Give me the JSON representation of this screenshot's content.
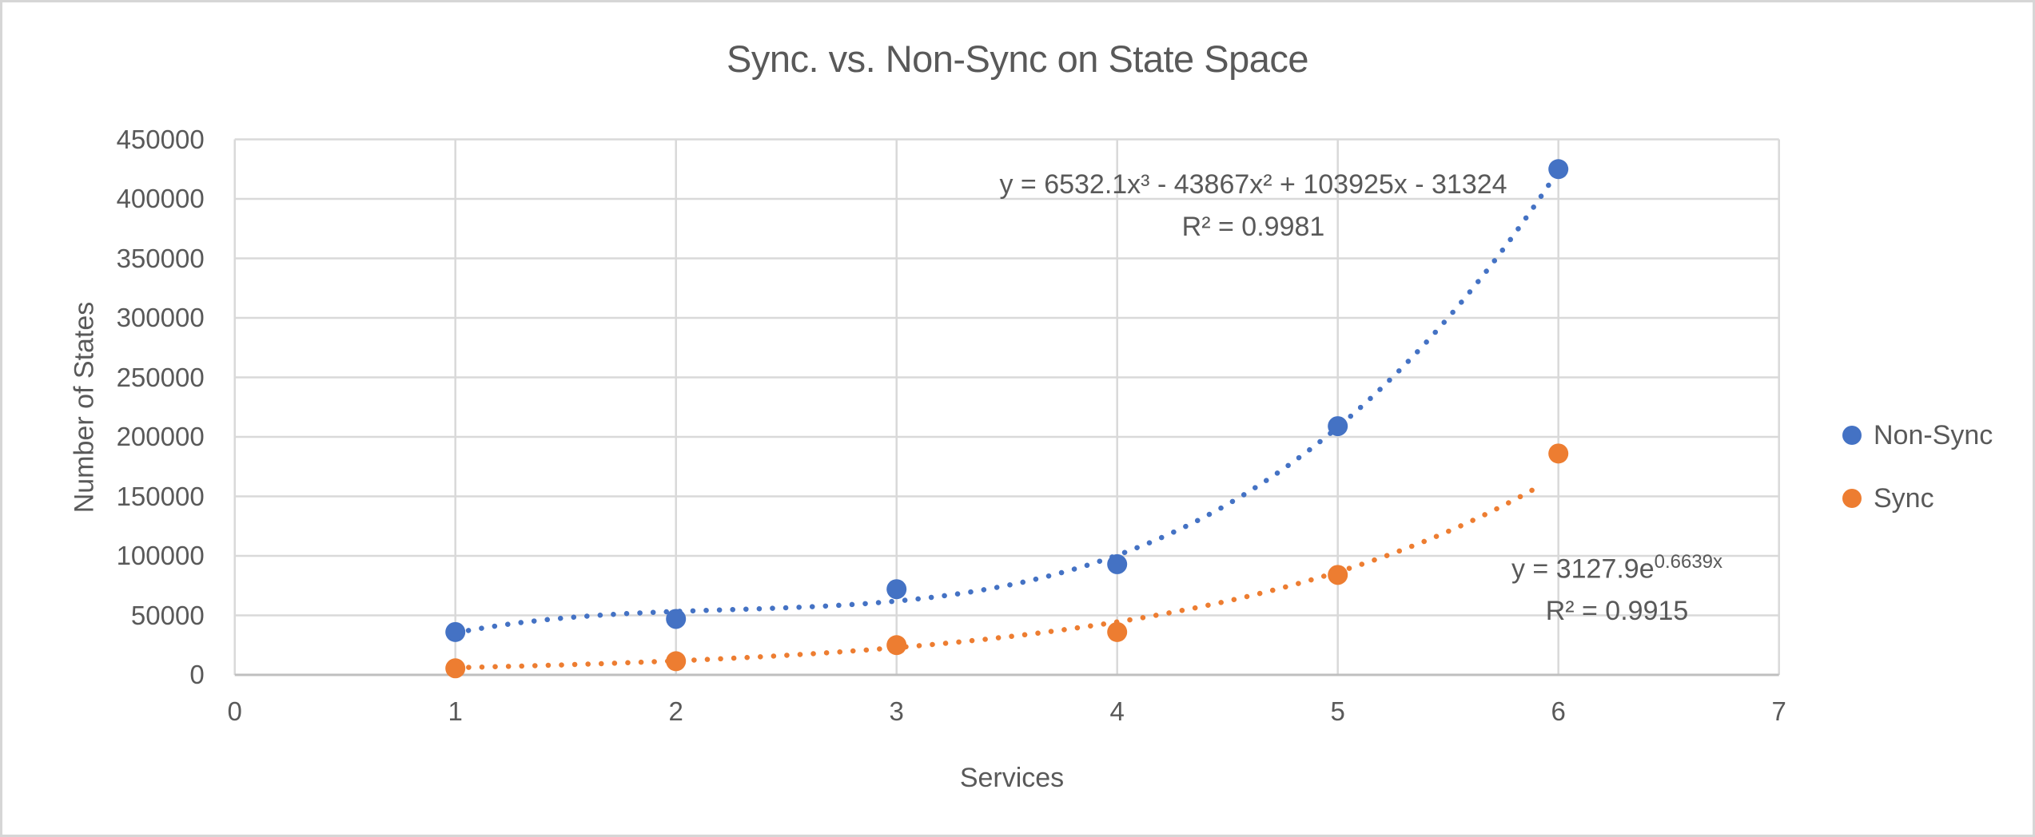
{
  "chart_data": {
    "type": "scatter",
    "title": "Sync. vs. Non-Sync on State Space",
    "xlabel": "Services",
    "ylabel": "Number of States",
    "xlim": [
      0,
      7
    ],
    "ylim": [
      0,
      450000
    ],
    "x_ticks": [
      0,
      1,
      2,
      3,
      4,
      5,
      6,
      7
    ],
    "x_tick_labels": [
      "0",
      "1",
      "2",
      "3",
      "4",
      "5",
      "6",
      "7"
    ],
    "y_ticks": [
      0,
      50000,
      100000,
      150000,
      200000,
      250000,
      300000,
      350000,
      400000,
      450000
    ],
    "y_tick_labels": [
      "0",
      "50000",
      "100000",
      "150000",
      "200000",
      "250000",
      "300000",
      "350000",
      "400000",
      "450000"
    ],
    "grid": true,
    "legend_position": "right",
    "x": [
      1,
      2,
      3,
      4,
      5,
      6
    ],
    "series": [
      {
        "name": "Non-Sync",
        "color": "#4472C4",
        "values": [
          36000,
          47000,
          72000,
          93000,
          209000,
          425000
        ],
        "trendline": {
          "type": "polynomial3",
          "style": "dotted",
          "coefficients": [
            6532.1,
            -43867,
            103925,
            -31324
          ],
          "x_range": [
            1,
            6
          ],
          "equation_label": "y = 6532.1x³ - 43867x² + 103925x - 31324",
          "r2_label": "R² = 0.9981"
        }
      },
      {
        "name": "Sync",
        "color": "#ED7D31",
        "values": [
          5500,
          11500,
          25000,
          36000,
          84000,
          186000
        ],
        "trendline": {
          "type": "exponential",
          "style": "dotted",
          "a": 3127.9,
          "b": 0.6639,
          "x_range": [
            1,
            5.93
          ],
          "equation_label_base": "y = 3127.9e",
          "equation_label_exponent": "0.6639x",
          "r2_label": "R² = 0.9915"
        }
      }
    ]
  },
  "colors": {
    "gridline": "#d9d9d9",
    "axis_line": "#bfbfbf",
    "text": "#595959",
    "chart_border": "#d6d6d6",
    "background": "#ffffff"
  }
}
